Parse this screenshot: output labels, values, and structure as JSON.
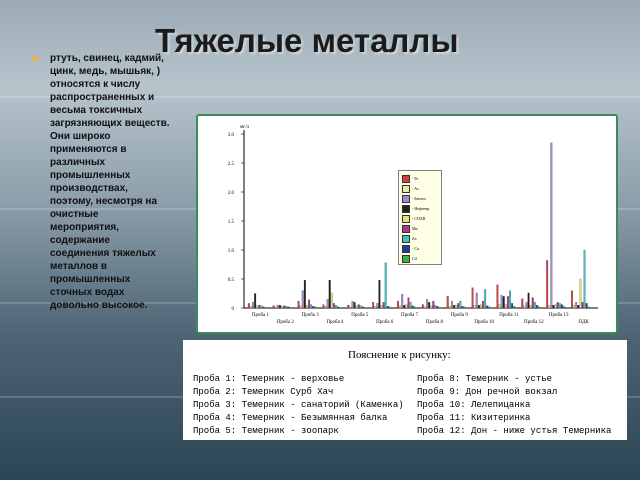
{
  "slide": {
    "title": "Тяжелые металлы",
    "bullet_text": "ртуть, свинец, кадмий, цинк, медь, мышьяк, ) относятся к числу распространенных и весьма токсичных загрязняющих веществ. Они широко применяются в различных промышленных производствах, поэтому, несмотря на очистные мероприятия, содержание соединения тяжелых металлов в промышленных сточных водах довольно высокое.",
    "bullet_color": "#e8b43a"
  },
  "chart_data": {
    "type": "bar",
    "ylabel": "мг/л",
    "ylim": [
      0,
      3.0
    ],
    "y_ticks": [
      "0",
      "0.5",
      "1.0",
      "1.5",
      "2.0",
      "2.5",
      "3.0"
    ],
    "categories": [
      "Проба 1",
      "Проба 2",
      "Проба 3",
      "Проба 4",
      "Проба 5",
      "Проба 6",
      "Проба 7",
      "Проба 8",
      "Проба 9",
      "Проба 10",
      "Проба 11",
      "Проба 12",
      "Проба 13",
      "ПДК"
    ],
    "series": [
      {
        "name": "Fe",
        "color": "#d04040",
        "values": [
          0.08,
          0.04,
          0.12,
          0.06,
          0.05,
          0.1,
          0.12,
          0.06,
          0.2,
          0.35,
          0.4,
          0.16,
          0.82,
          0.3
        ]
      },
      {
        "name": "As",
        "color": "#e8e8a0",
        "values": [
          0.03,
          0.02,
          0.04,
          0.03,
          0.02,
          0.03,
          0.04,
          0.02,
          0.03,
          0.05,
          0.06,
          0.04,
          0.05,
          0.05
        ]
      },
      {
        "name": "Бензол",
        "color": "#9a8fd0",
        "values": [
          0.1,
          0.05,
          0.3,
          0.15,
          0.12,
          0.08,
          0.24,
          0.15,
          0.12,
          0.26,
          0.22,
          0.1,
          2.85,
          0.1
        ]
      },
      {
        "name": "Нефтепр.",
        "color": "#202020",
        "values": [
          0.25,
          0.05,
          0.48,
          0.48,
          0.1,
          0.48,
          0.05,
          0.1,
          0.05,
          0.05,
          0.2,
          0.26,
          0.05,
          0.05
        ]
      },
      {
        "name": "СПАВ",
        "color": "#e8e070",
        "values": [
          0.04,
          0.03,
          0.05,
          0.26,
          0.04,
          0.05,
          0.06,
          0.04,
          0.05,
          0.06,
          0.06,
          0.05,
          0.06,
          0.5
        ]
      },
      {
        "name": "Mn",
        "color": "#b83090",
        "values": [
          0.05,
          0.04,
          0.14,
          0.08,
          0.06,
          0.1,
          0.18,
          0.12,
          0.08,
          0.12,
          0.2,
          0.18,
          0.1,
          0.1
        ]
      },
      {
        "name": "Zn",
        "color": "#40c0c0",
        "values": [
          0.04,
          0.03,
          0.06,
          0.05,
          0.04,
          0.78,
          0.1,
          0.05,
          0.12,
          0.32,
          0.3,
          0.1,
          0.08,
          1.0
        ]
      },
      {
        "name": "Cu",
        "color": "#2040a0",
        "values": [
          0.02,
          0.02,
          0.03,
          0.02,
          0.02,
          0.03,
          0.04,
          0.03,
          0.03,
          0.04,
          0.08,
          0.05,
          0.06,
          0.08
        ]
      },
      {
        "name": "Cd",
        "color": "#40b040",
        "values": [
          0.01,
          0.01,
          0.02,
          0.01,
          0.01,
          0.02,
          0.02,
          0.01,
          0.02,
          0.02,
          0.03,
          0.02,
          0.03,
          0.02
        ]
      }
    ]
  },
  "legend": [
    {
      "label": "- Fe",
      "color": "#d04040"
    },
    {
      "label": "- As",
      "color": "#e8e8a0"
    },
    {
      "label": "- Бензол",
      "color": "#9a8fd0"
    },
    {
      "label": "- Нефтепр.",
      "color": "#202020"
    },
    {
      "label": "- СПАВ",
      "color": "#e8e070"
    },
    {
      "label": "Mn",
      "color": "#b83090"
    },
    {
      "label": "Zn",
      "color": "#40c0c0"
    },
    {
      "label": "- Cu",
      "color": "#2040a0"
    },
    {
      "label": "Cd",
      "color": "#40b040"
    }
  ],
  "explanation": {
    "title": "Пояснение к рисунку:",
    "probes": [
      "Проба 1:   Темерник - верховье",
      "Проба 2:   Темерник   Сурб Хач",
      "Проба 3:   Темерник - санаторий (Каменка)",
      "Проба 4:   Темерник - Безымянная балка",
      "Проба 5:   Темерник - зоопарк",
      "Проба 8:  Темерник - устье",
      "Проба 9:  Дон   речной вокзал",
      "Проба 10:  Лелепицанка",
      "Проба 11:  Кизитеринка",
      "Проба 12:  Дон - ниже устья Темерника"
    ]
  }
}
